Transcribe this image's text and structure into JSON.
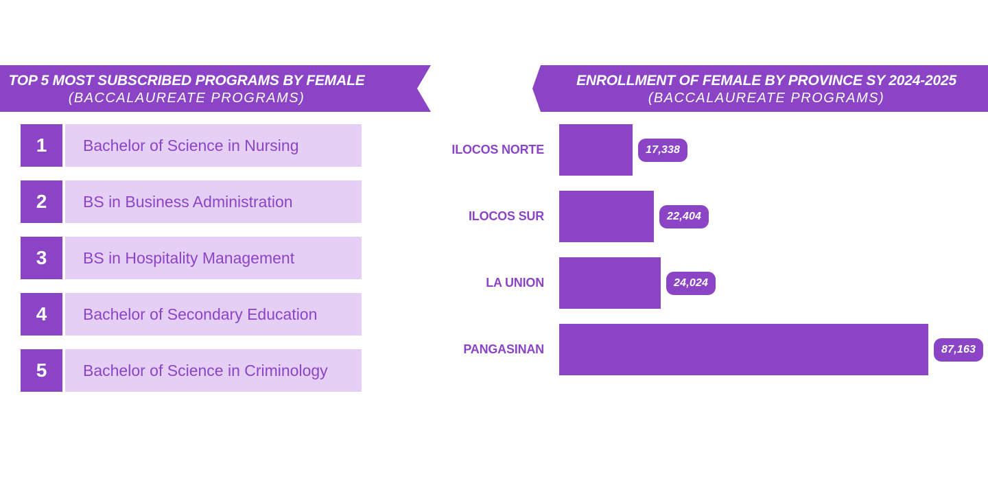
{
  "colors": {
    "primary": "#8B44C5",
    "light": "#E6CFF5",
    "text_on_banner": "#FFFFFF"
  },
  "left_panel": {
    "header": {
      "title": "TOP 5 MOST SUBSCRIBED PROGRAMS BY FEMALE",
      "subtitle": "(BACCALAUREATE PROGRAMS)"
    },
    "programs": [
      {
        "rank": "1",
        "name": "Bachelor of Science in Nursing"
      },
      {
        "rank": "2",
        "name": "BS in Business Administration"
      },
      {
        "rank": "3",
        "name": "BS in Hospitality Management"
      },
      {
        "rank": "4",
        "name": "Bachelor of Secondary Education"
      },
      {
        "rank": "5",
        "name": "Bachelor of Science in Criminology"
      }
    ]
  },
  "right_panel": {
    "header": {
      "title": "ENROLLMENT OF FEMALE BY PROVINCE SY 2024-2025",
      "subtitle": "(BACCALAUREATE PROGRAMS)"
    }
  },
  "chart_data": {
    "type": "bar",
    "orientation": "horizontal",
    "title": "ENROLLMENT OF FEMALE BY PROVINCE SY 2024-2025 (BACCALAUREATE PROGRAMS)",
    "categories": [
      "ILOCOS NORTE",
      "ILOCOS SUR",
      "LA UNION",
      "PANGASINAN"
    ],
    "values": [
      17338,
      22404,
      24024,
      87163
    ],
    "value_labels": [
      "17,338",
      "22,404",
      "24,024",
      "87,163"
    ],
    "xlim": [
      0,
      87163
    ],
    "grid": false,
    "legend": false,
    "bar_color": "#8B44C5"
  }
}
